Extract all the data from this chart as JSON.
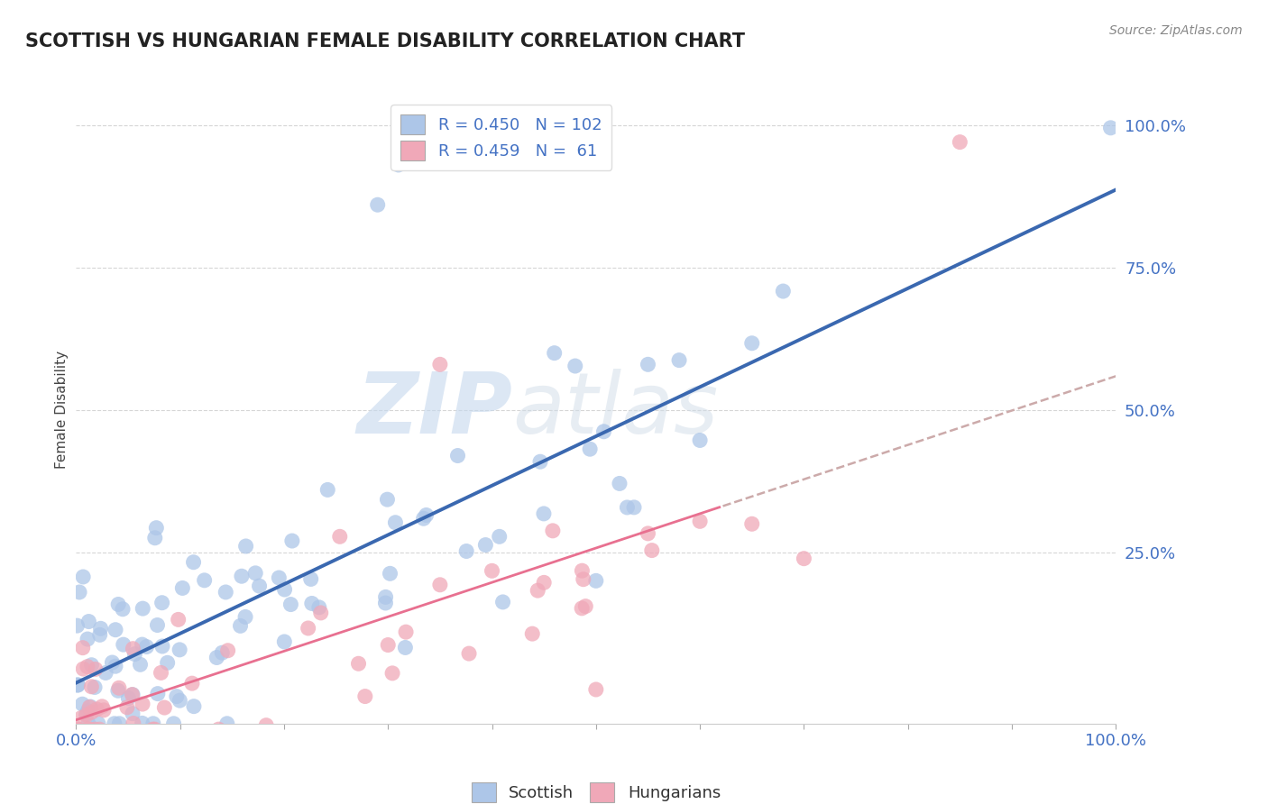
{
  "title": "SCOTTISH VS HUNGARIAN FEMALE DISABILITY CORRELATION CHART",
  "source": "Source: ZipAtlas.com",
  "ylabel": "Female Disability",
  "ytick_labels": [
    "25.0%",
    "50.0%",
    "75.0%",
    "100.0%"
  ],
  "ytick_positions": [
    0.25,
    0.5,
    0.75,
    1.0
  ],
  "r_scottish": 0.45,
  "n_scottish": 102,
  "r_hungarian": 0.459,
  "n_hungarian": 61,
  "blue_color": "#adc6e8",
  "pink_color": "#f0a8b8",
  "blue_line_color": "#3a68b0",
  "pink_line_color": "#e87090",
  "title_color": "#222222",
  "axis_label_color": "#4472c4",
  "watermark_blue": "ZIP",
  "watermark_gray": "atlas",
  "watermark_color_blue": "#c5d8ee",
  "watermark_color_gray": "#d0dce8",
  "blue_line_intercept": 0.02,
  "blue_line_slope": 0.73,
  "pink_line_intercept": -0.05,
  "pink_line_slope": 0.58
}
